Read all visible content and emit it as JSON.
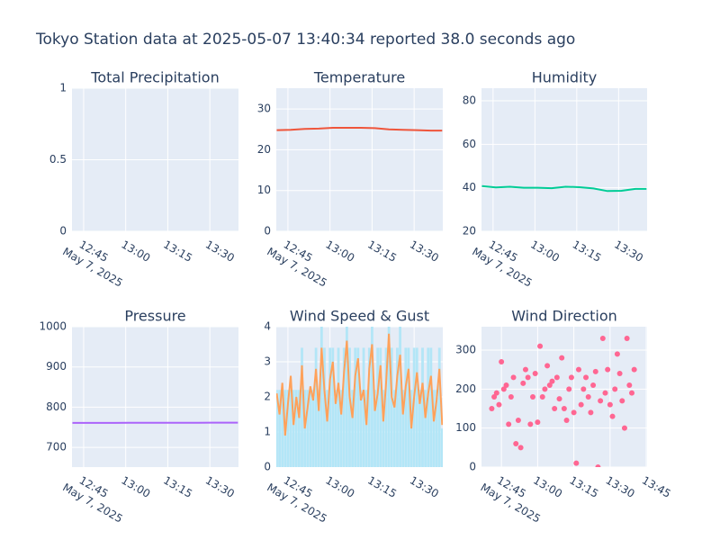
{
  "title": "Tokyo Station data at 2025-05-07 13:40:34 reported 38.0 seconds ago",
  "chart_data": [
    {
      "type": "line",
      "title": "Total Precipitation",
      "xlim": [
        "2025-05-07 12:40:51",
        "2025-05-07 13:40:13"
      ],
      "xticks": [
        {
          "value": "2025-05-07 12:45",
          "label": "12:45"
        },
        {
          "value": "2025-05-07 13:00",
          "label": "13:00"
        },
        {
          "value": "2025-05-07 13:15",
          "label": "13:15"
        },
        {
          "value": "2025-05-07 13:30",
          "label": "13:30"
        }
      ],
      "xdate": "May 7, 2025",
      "ylim": [
        0,
        1
      ],
      "yticks": [
        0,
        0.5,
        1
      ],
      "x": [],
      "series": []
    },
    {
      "type": "line",
      "title": "Temperature",
      "xlim": [
        "2025-05-07 12:40:51",
        "2025-05-07 13:40:13"
      ],
      "xticks": [
        {
          "value": "2025-05-07 12:45",
          "label": "12:45"
        },
        {
          "value": "2025-05-07 13:00",
          "label": "13:00"
        },
        {
          "value": "2025-05-07 13:15",
          "label": "13:15"
        },
        {
          "value": "2025-05-07 13:30",
          "label": "13:30"
        }
      ],
      "xdate": "May 7, 2025",
      "ylim": [
        0,
        35.1
      ],
      "yticks": [
        0,
        10,
        20,
        30
      ],
      "x": [
        "2025-05-07 12:41",
        "2025-05-07 12:46",
        "2025-05-07 12:51",
        "2025-05-07 12:56",
        "2025-05-07 13:01",
        "2025-05-07 13:06",
        "2025-05-07 13:11",
        "2025-05-07 13:16",
        "2025-05-07 13:21",
        "2025-05-07 13:26",
        "2025-05-07 13:31",
        "2025-05-07 13:36",
        "2025-05-07 13:40"
      ],
      "series": [
        {
          "color": "#EF553B",
          "values": [
            24.8,
            24.9,
            25.1,
            25.2,
            25.4,
            25.4,
            25.4,
            25.3,
            25.0,
            24.9,
            24.8,
            24.7,
            24.7
          ]
        }
      ]
    },
    {
      "type": "line",
      "title": "Humidity",
      "xlim": [
        "2025-05-07 12:40:51",
        "2025-05-07 13:40:13"
      ],
      "xticks": [
        {
          "value": "2025-05-07 12:45",
          "label": "12:45"
        },
        {
          "value": "2025-05-07 13:00",
          "label": "13:00"
        },
        {
          "value": "2025-05-07 13:15",
          "label": "13:15"
        },
        {
          "value": "2025-05-07 13:30",
          "label": "13:30"
        }
      ],
      "xdate": "May 7, 2025",
      "ylim": [
        20,
        85.8
      ],
      "yticks": [
        20,
        40,
        60,
        80
      ],
      "x": [
        "2025-05-07 12:41",
        "2025-05-07 12:46",
        "2025-05-07 12:51",
        "2025-05-07 12:56",
        "2025-05-07 13:01",
        "2025-05-07 13:06",
        "2025-05-07 13:11",
        "2025-05-07 13:16",
        "2025-05-07 13:21",
        "2025-05-07 13:26",
        "2025-05-07 13:31",
        "2025-05-07 13:36",
        "2025-05-07 13:40"
      ],
      "series": [
        {
          "color": "#00CC96",
          "values": [
            40.8,
            40.2,
            40.5,
            40.0,
            40.0,
            39.8,
            40.5,
            40.3,
            39.7,
            38.5,
            38.6,
            39.5,
            39.5
          ]
        }
      ]
    },
    {
      "type": "line",
      "title": "Pressure",
      "xlim": [
        "2025-05-07 12:40:51",
        "2025-05-07 13:40:13"
      ],
      "xticks": [
        {
          "value": "2025-05-07 12:45",
          "label": "12:45"
        },
        {
          "value": "2025-05-07 13:00",
          "label": "13:00"
        },
        {
          "value": "2025-05-07 13:15",
          "label": "13:15"
        },
        {
          "value": "2025-05-07 13:30",
          "label": "13:30"
        }
      ],
      "xdate": "May 7, 2025",
      "ylim": [
        651,
        1000
      ],
      "yticks": [
        700,
        800,
        900,
        1000
      ],
      "x": [
        "2025-05-07 12:41",
        "2025-05-07 12:46",
        "2025-05-07 12:51",
        "2025-05-07 12:56",
        "2025-05-07 13:01",
        "2025-05-07 13:06",
        "2025-05-07 13:11",
        "2025-05-07 13:16",
        "2025-05-07 13:21",
        "2025-05-07 13:26",
        "2025-05-07 13:31",
        "2025-05-07 13:36",
        "2025-05-07 13:40"
      ],
      "series": [
        {
          "color": "#AB63FA",
          "values": [
            760.8,
            760.9,
            761.0,
            761.0,
            761.1,
            761.1,
            761.2,
            761.2,
            761.3,
            761.3,
            761.4,
            761.5,
            761.5
          ]
        }
      ]
    },
    {
      "type": "line",
      "title": "Wind Speed & Gust",
      "xlim": [
        "2025-05-07 12:40:51",
        "2025-05-07 13:40:13"
      ],
      "xticks": [
        {
          "value": "2025-05-07 12:45",
          "label": "12:45"
        },
        {
          "value": "2025-05-07 13:00",
          "label": "13:00"
        },
        {
          "value": "2025-05-07 13:15",
          "label": "13:15"
        },
        {
          "value": "2025-05-07 13:30",
          "label": "13:30"
        }
      ],
      "xdate": "May 7, 2025",
      "ylim": [
        0,
        4
      ],
      "yticks": [
        0,
        1,
        2,
        3,
        4
      ],
      "x": [
        "2025-05-07 12:41",
        "2025-05-07 12:42",
        "2025-05-07 12:43",
        "2025-05-07 12:44",
        "2025-05-07 12:45",
        "2025-05-07 12:46",
        "2025-05-07 12:47",
        "2025-05-07 12:48",
        "2025-05-07 12:49",
        "2025-05-07 12:50",
        "2025-05-07 12:51",
        "2025-05-07 12:52",
        "2025-05-07 12:53",
        "2025-05-07 12:54",
        "2025-05-07 12:55",
        "2025-05-07 12:56",
        "2025-05-07 12:57",
        "2025-05-07 12:58",
        "2025-05-07 12:59",
        "2025-05-07 13:00",
        "2025-05-07 13:01",
        "2025-05-07 13:02",
        "2025-05-07 13:03",
        "2025-05-07 13:04",
        "2025-05-07 13:05",
        "2025-05-07 13:06",
        "2025-05-07 13:07",
        "2025-05-07 13:08",
        "2025-05-07 13:09",
        "2025-05-07 13:10",
        "2025-05-07 13:11",
        "2025-05-07 13:12",
        "2025-05-07 13:13",
        "2025-05-07 13:14",
        "2025-05-07 13:15",
        "2025-05-07 13:16",
        "2025-05-07 13:17",
        "2025-05-07 13:18",
        "2025-05-07 13:19",
        "2025-05-07 13:20",
        "2025-05-07 13:21",
        "2025-05-07 13:22",
        "2025-05-07 13:23",
        "2025-05-07 13:24",
        "2025-05-07 13:25",
        "2025-05-07 13:26",
        "2025-05-07 13:27",
        "2025-05-07 13:28",
        "2025-05-07 13:29",
        "2025-05-07 13:30",
        "2025-05-07 13:31",
        "2025-05-07 13:32",
        "2025-05-07 13:33",
        "2025-05-07 13:34",
        "2025-05-07 13:35",
        "2025-05-07 13:36",
        "2025-05-07 13:37",
        "2025-05-07 13:38",
        "2025-05-07 13:39",
        "2025-05-07 13:40"
      ],
      "series": [
        {
          "type": "bar",
          "color": "#b3e6f7",
          "values": [
            2.2,
            2.2,
            2.2,
            2.2,
            2.2,
            2.2,
            2.2,
            2.2,
            2.2,
            3.4,
            2.2,
            2.2,
            2.2,
            2.2,
            3.4,
            2.2,
            4,
            3.4,
            2.2,
            3.4,
            3.4,
            2.2,
            3.4,
            2.2,
            3.4,
            4,
            3.4,
            2.2,
            3.4,
            3.4,
            2.2,
            3.4,
            2.2,
            3.4,
            4,
            2.2,
            3.4,
            3.4,
            2.2,
            3.4,
            4,
            3.4,
            2.2,
            3.4,
            4,
            2.2,
            3.4,
            3.4,
            2.2,
            3.4,
            3.4,
            2.2,
            3.4,
            2.2,
            3.4,
            3.4,
            2.2,
            2.2,
            3.4,
            1.1
          ]
        },
        {
          "type": "line",
          "color": "#FFA15A",
          "values": [
            2.1,
            1.5,
            2.4,
            0.9,
            1.8,
            2.6,
            1.2,
            2.0,
            1.4,
            2.9,
            1.1,
            1.7,
            2.3,
            1.9,
            2.8,
            1.6,
            3.4,
            2.2,
            1.3,
            2.5,
            3.0,
            1.8,
            2.4,
            1.5,
            2.7,
            3.6,
            2.0,
            1.4,
            2.6,
            3.1,
            1.9,
            2.2,
            1.2,
            2.8,
            3.5,
            1.6,
            2.1,
            2.9,
            1.3,
            2.4,
            3.8,
            2.0,
            1.7,
            2.6,
            3.2,
            1.5,
            2.3,
            2.8,
            1.1,
            2.0,
            2.7,
            1.8,
            2.4,
            1.4,
            2.1,
            2.6,
            1.3,
            1.9,
            2.8,
            1.2
          ]
        }
      ]
    },
    {
      "type": "scatter",
      "title": "Wind Direction",
      "xlim": [
        "2025-05-07 12:36:45",
        "2025-05-07 13:45:20"
      ],
      "xticks": [
        {
          "value": "2025-05-07 12:45",
          "label": "12:45"
        },
        {
          "value": "2025-05-07 13:00",
          "label": "13:00"
        },
        {
          "value": "2025-05-07 13:15",
          "label": "13:15"
        },
        {
          "value": "2025-05-07 13:30",
          "label": "13:30"
        },
        {
          "value": "2025-05-07 13:45",
          "label": "13:45"
        }
      ],
      "xdate": "May 7, 2025",
      "ylim": [
        0,
        360
      ],
      "yticks": [
        0,
        100,
        200,
        300
      ],
      "x": [
        "2025-05-07 12:41",
        "2025-05-07 12:42",
        "2025-05-07 12:43",
        "2025-05-07 12:44",
        "2025-05-07 12:45",
        "2025-05-07 12:46",
        "2025-05-07 12:47",
        "2025-05-07 12:48",
        "2025-05-07 12:49",
        "2025-05-07 12:50",
        "2025-05-07 12:51",
        "2025-05-07 12:52",
        "2025-05-07 12:53",
        "2025-05-07 12:54",
        "2025-05-07 12:55",
        "2025-05-07 12:56",
        "2025-05-07 12:57",
        "2025-05-07 12:58",
        "2025-05-07 12:59",
        "2025-05-07 13:00",
        "2025-05-07 13:01",
        "2025-05-07 13:02",
        "2025-05-07 13:03",
        "2025-05-07 13:04",
        "2025-05-07 13:05",
        "2025-05-07 13:06",
        "2025-05-07 13:07",
        "2025-05-07 13:08",
        "2025-05-07 13:09",
        "2025-05-07 13:10",
        "2025-05-07 13:11",
        "2025-05-07 13:12",
        "2025-05-07 13:13",
        "2025-05-07 13:14",
        "2025-05-07 13:15",
        "2025-05-07 13:16",
        "2025-05-07 13:17",
        "2025-05-07 13:18",
        "2025-05-07 13:19",
        "2025-05-07 13:20",
        "2025-05-07 13:21",
        "2025-05-07 13:22",
        "2025-05-07 13:23",
        "2025-05-07 13:24",
        "2025-05-07 13:25",
        "2025-05-07 13:26",
        "2025-05-07 13:27",
        "2025-05-07 13:28",
        "2025-05-07 13:29",
        "2025-05-07 13:30",
        "2025-05-07 13:31",
        "2025-05-07 13:32",
        "2025-05-07 13:33",
        "2025-05-07 13:34",
        "2025-05-07 13:35",
        "2025-05-07 13:36",
        "2025-05-07 13:37",
        "2025-05-07 13:38",
        "2025-05-07 13:39",
        "2025-05-07 13:40"
      ],
      "series": [
        {
          "color": "#FF6692",
          "values": [
            150,
            180,
            190,
            160,
            270,
            200,
            210,
            110,
            180,
            230,
            60,
            120,
            50,
            215,
            250,
            230,
            110,
            180,
            240,
            115,
            310,
            180,
            200,
            260,
            210,
            220,
            150,
            230,
            175,
            280,
            150,
            120,
            200,
            230,
            140,
            10,
            250,
            160,
            200,
            230,
            180,
            140,
            210,
            245,
            0,
            170,
            330,
            190,
            250,
            160,
            130,
            200,
            290,
            240,
            170,
            100,
            330,
            210,
            190,
            250
          ]
        }
      ]
    }
  ]
}
